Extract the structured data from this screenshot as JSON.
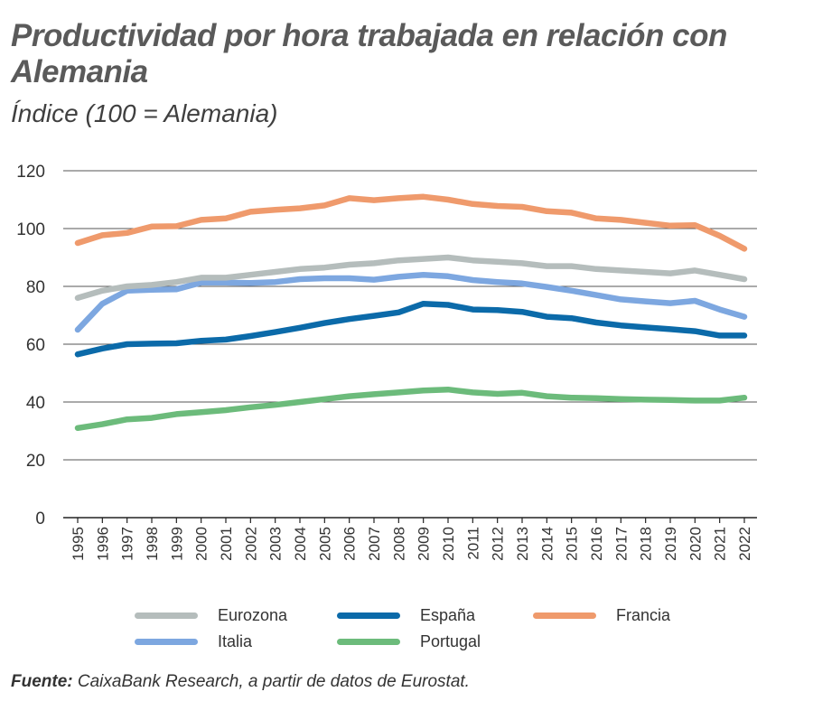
{
  "header": {
    "title": "Productividad por hora trabajada en relación con Alemania",
    "subtitle": "Índice (100 = Alemania)"
  },
  "footer": {
    "source_label": "Fuente:",
    "source_text": "CaixaBank Research, a partir de datos de Eurostat."
  },
  "chart_data": {
    "type": "line",
    "x": [
      "1995",
      "1996",
      "1997",
      "1998",
      "1999",
      "2000",
      "2001",
      "2002",
      "2003",
      "2004",
      "2005",
      "2006",
      "2007",
      "2008",
      "2009",
      "2010",
      "2011",
      "2012",
      "2013",
      "2014",
      "2015",
      "2016",
      "2017",
      "2018",
      "2019",
      "2020",
      "2021",
      "2022"
    ],
    "ylim": [
      0,
      120
    ],
    "yticks": [
      0,
      20,
      40,
      60,
      80,
      100,
      120
    ],
    "grid": true,
    "legend_position": "bottom",
    "series": [
      {
        "name": "Eurozona",
        "color": "#b5bdbc",
        "values": [
          76,
          78.5,
          80,
          80.5,
          81.5,
          83,
          83,
          84,
          85,
          86,
          86.5,
          87.5,
          88,
          89,
          89.5,
          90,
          89,
          88.5,
          88,
          87,
          87,
          86,
          85.5,
          85,
          84.5,
          85.5,
          84,
          82.5
        ]
      },
      {
        "name": "España",
        "color": "#0b6aa9",
        "values": [
          56.5,
          58.5,
          60,
          60.2,
          60.3,
          61.2,
          61.6,
          62.8,
          64.2,
          65.7,
          67.3,
          68.7,
          69.8,
          71,
          74,
          73.6,
          72,
          71.8,
          71.2,
          69.5,
          69,
          67.5,
          66.5,
          65.8,
          65.2,
          64.5,
          63,
          63
        ]
      },
      {
        "name": "Francia",
        "color": "#ef9a6c",
        "values": [
          95,
          97.7,
          98.5,
          100.7,
          100.8,
          103,
          103.5,
          105.8,
          106.5,
          107,
          108,
          110.5,
          109.8,
          110.5,
          111,
          110,
          108.5,
          107.8,
          107.5,
          106,
          105.5,
          103.5,
          103,
          102,
          101,
          101.2,
          97.5,
          93
        ]
      },
      {
        "name": "Italia",
        "color": "#7da7e0",
        "values": [
          65,
          74,
          78.5,
          78.8,
          79,
          81.3,
          81.3,
          81.2,
          81.5,
          82.5,
          82.8,
          82.8,
          82.3,
          83.3,
          84,
          83.5,
          82.2,
          81.5,
          81,
          79.8,
          78.5,
          77,
          75.5,
          74.8,
          74.2,
          75,
          72,
          69.5
        ]
      },
      {
        "name": "Portugal",
        "color": "#6cbb7b",
        "values": [
          31,
          32.3,
          34,
          34.5,
          35.8,
          36.5,
          37.2,
          38.2,
          39,
          40,
          41,
          42,
          42.7,
          43.3,
          44,
          44.3,
          43.3,
          42.8,
          43.2,
          42,
          41.5,
          41.3,
          41,
          40.8,
          40.7,
          40.5,
          40.5,
          41.5
        ]
      }
    ]
  }
}
